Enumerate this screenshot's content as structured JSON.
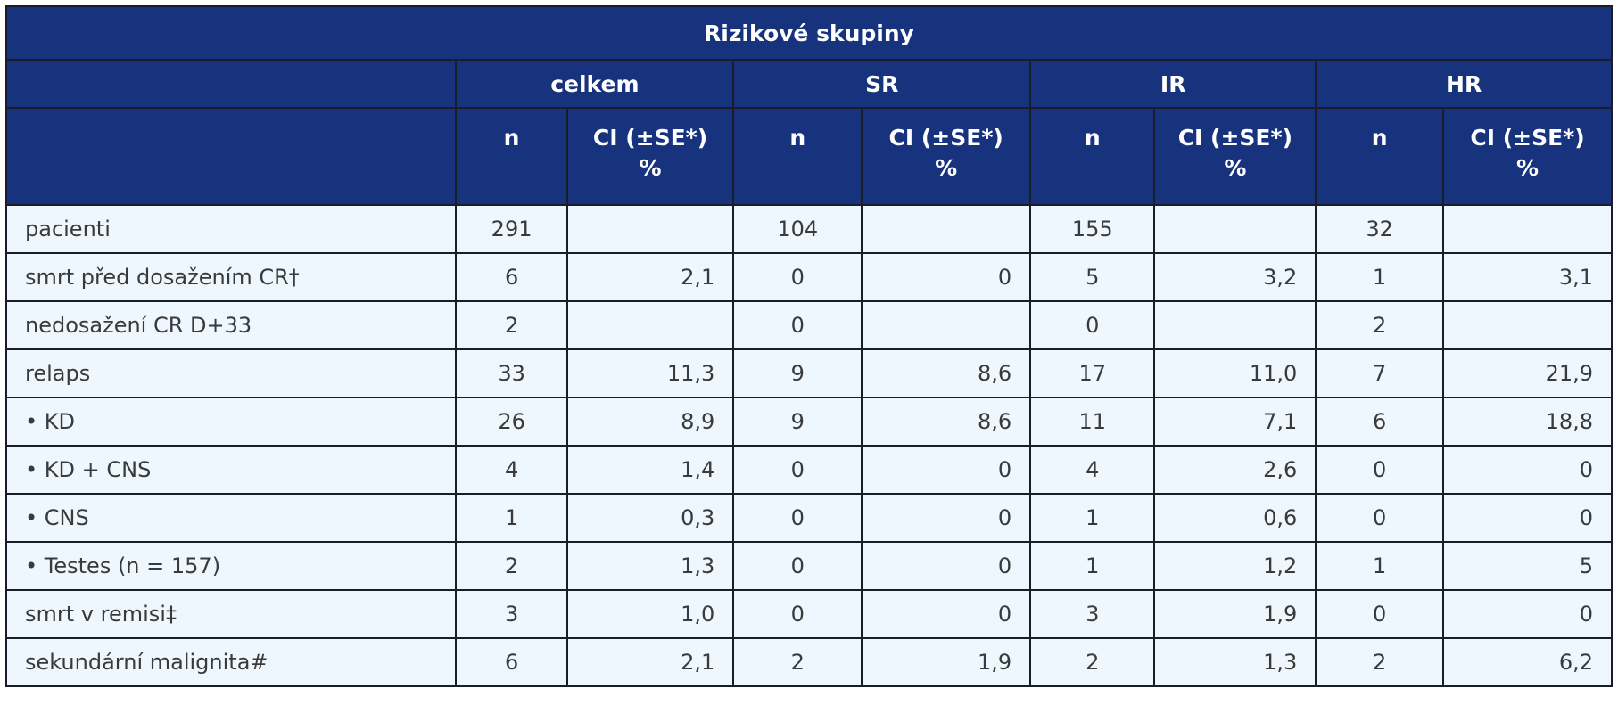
{
  "header": {
    "title": "Rizikové skupiny",
    "groups": [
      "celkem",
      "SR",
      "IR",
      "HR"
    ],
    "col_n": "n",
    "col_ci": "CI (±SE*) %"
  },
  "rows": [
    {
      "label": "pacienti",
      "cells": [
        "291",
        "",
        "104",
        "",
        "155",
        "",
        "32",
        ""
      ]
    },
    {
      "label": "smrt před dosažením CR†",
      "cells": [
        "6",
        "2,1",
        "0",
        "0",
        "5",
        "3,2",
        "1",
        "3,1"
      ]
    },
    {
      "label": "nedosažení CR D+33",
      "cells": [
        "2",
        "",
        "0",
        "",
        "0",
        "",
        "2",
        ""
      ]
    },
    {
      "label": "relaps",
      "cells": [
        "33",
        "11,3",
        "9",
        "8,6",
        "17",
        "11,0",
        "7",
        "21,9"
      ]
    },
    {
      "label": "• KD",
      "cells": [
        "26",
        "8,9",
        "9",
        "8,6",
        "11",
        "7,1",
        "6",
        "18,8"
      ]
    },
    {
      "label": "• KD + CNS",
      "cells": [
        "4",
        "1,4",
        "0",
        "0",
        "4",
        "2,6",
        "0",
        "0"
      ]
    },
    {
      "label": "• CNS",
      "cells": [
        "1",
        "0,3",
        "0",
        "0",
        "1",
        "0,6",
        "0",
        "0"
      ]
    },
    {
      "label": "• Testes (n = 157)",
      "cells": [
        "2",
        "1,3",
        "0",
        "0",
        "1",
        "1,2",
        "1",
        "5"
      ]
    },
    {
      "label": "smrt v remisi‡",
      "cells": [
        "3",
        "1,0",
        "0",
        "0",
        "3",
        "1,9",
        "0",
        "0"
      ]
    },
    {
      "label": "sekundární malignita#",
      "cells": [
        "6",
        "2,1",
        "2",
        "1,9",
        "2",
        "1,3",
        "2",
        "6,2"
      ]
    }
  ]
}
